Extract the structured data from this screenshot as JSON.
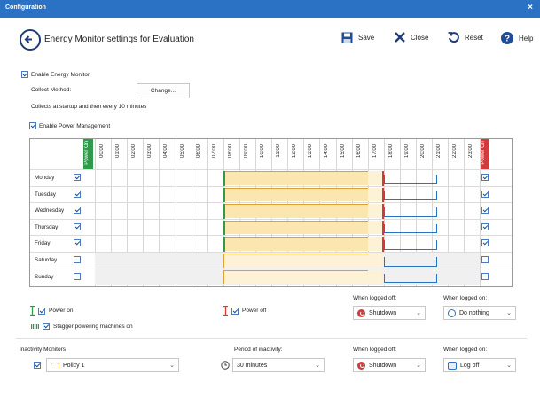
{
  "window": {
    "title": "Configuration",
    "close": "×"
  },
  "header": {
    "title": "Energy Monitor settings for Evaluation"
  },
  "toolbar": {
    "save": "Save",
    "close": "Close",
    "reset": "Reset",
    "help": "Help"
  },
  "monitor": {
    "enable_label": "Enable Energy Monitor",
    "collect_label": "Collect Method:",
    "change_btn": "Change...",
    "collects_text": "Collects at startup and then every 10 minutes"
  },
  "power_mgmt": {
    "enable_label": "Enable Power Management",
    "power_on_col": "Power On",
    "power_off_col": "Power Off",
    "hours": [
      "00:00",
      "01:00",
      "02:00",
      "03:00",
      "04:00",
      "05:00",
      "06:00",
      "07:00",
      "08:00",
      "09:00",
      "10:00",
      "11:00",
      "12:00",
      "13:00",
      "14:00",
      "15:00",
      "16:00",
      "17:00",
      "18:00",
      "19:00",
      "20:00",
      "21:00",
      "22:00",
      "23:00"
    ],
    "days": [
      {
        "name": "Monday",
        "on": true,
        "off": true
      },
      {
        "name": "Tuesday",
        "on": true,
        "off": true
      },
      {
        "name": "Wednesday",
        "on": true,
        "off": true
      },
      {
        "name": "Thursday",
        "on": true,
        "off": true
      },
      {
        "name": "Friday",
        "on": true,
        "off": true
      },
      {
        "name": "Saturday",
        "on": false,
        "off": false
      },
      {
        "name": "Sunday",
        "on": false,
        "off": false
      }
    ]
  },
  "legend": {
    "power_on": "Power on",
    "stagger": "Stagger powering machines on",
    "power_off": "Power off",
    "when_logged_off_label": "When logged off:",
    "when_logged_off_value": "Shutdown",
    "when_logged_on_label": "When logged on:",
    "when_logged_on_value": "Do nothing"
  },
  "inactivity": {
    "label": "Inactivity Monitors",
    "policy": "Policy 1",
    "period_label": "Period of inactivity:",
    "period_value": "30 minutes",
    "logged_off_label": "When logged off:",
    "logged_off_value": "Shutdown",
    "logged_on_label": "When logged on:",
    "logged_on_value": "Log off"
  },
  "colors": {
    "accent": "#2b72c4",
    "power_on": "#2e9b4a",
    "power_off": "#d23b3b",
    "schedule": "#fbe6b0"
  }
}
